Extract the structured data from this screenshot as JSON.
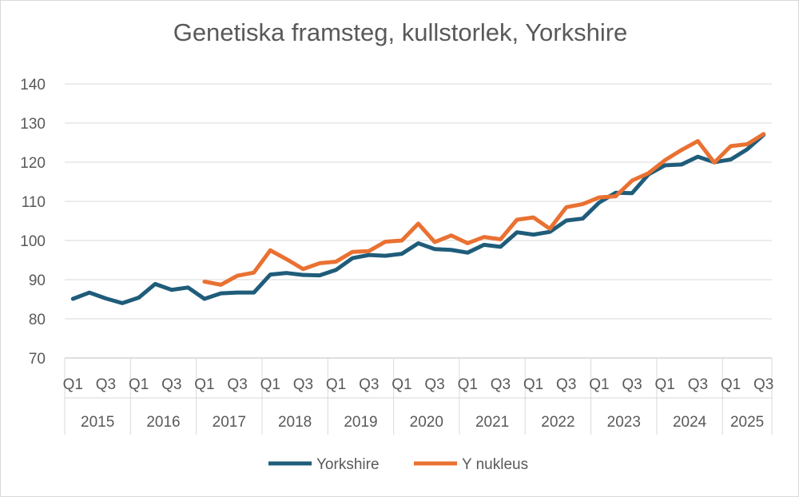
{
  "chart_data": {
    "type": "line",
    "title": "Genetiska framsteg, kullstorlek, Yorkshire",
    "xlabel": "",
    "ylabel": "",
    "ylim": [
      70,
      140
    ],
    "yticks": [
      70,
      80,
      90,
      100,
      110,
      120,
      130,
      140
    ],
    "grid": "horizontal",
    "legend": "bottom",
    "years": [
      "2015",
      "2016",
      "2017",
      "2018",
      "2019",
      "2020",
      "2021",
      "2022",
      "2023",
      "2024",
      "2025"
    ],
    "quarter_labels": [
      "Q1",
      "Q3"
    ],
    "x": [
      "2015 Q1",
      "2015 Q2",
      "2015 Q3",
      "2015 Q4",
      "2016 Q1",
      "2016 Q2",
      "2016 Q3",
      "2016 Q4",
      "2017 Q1",
      "2017 Q2",
      "2017 Q3",
      "2017 Q4",
      "2018 Q1",
      "2018 Q2",
      "2018 Q3",
      "2018 Q4",
      "2019 Q1",
      "2019 Q2",
      "2019 Q3",
      "2019 Q4",
      "2020 Q1",
      "2020 Q2",
      "2020 Q3",
      "2020 Q4",
      "2021 Q1",
      "2021 Q2",
      "2021 Q3",
      "2021 Q4",
      "2022 Q1",
      "2022 Q2",
      "2022 Q3",
      "2022 Q4",
      "2023 Q1",
      "2023 Q2",
      "2023 Q3",
      "2023 Q4",
      "2024 Q1",
      "2024 Q2",
      "2024 Q3",
      "2024 Q4",
      "2025 Q1",
      "2025 Q2",
      "2025 Q3"
    ],
    "series": [
      {
        "name": "Yorkshire",
        "color": "#1f5c7a",
        "values": [
          85.1,
          86.7,
          85.2,
          84.0,
          85.4,
          88.9,
          87.4,
          88.0,
          85.1,
          86.5,
          86.7,
          86.7,
          91.3,
          91.7,
          91.2,
          91.1,
          92.5,
          95.5,
          96.3,
          96.1,
          96.6,
          99.3,
          97.8,
          97.6,
          96.9,
          98.9,
          98.4,
          102.1,
          101.5,
          102.2,
          105.1,
          105.6,
          109.7,
          112.2,
          112.1,
          116.9,
          119.2,
          119.4,
          121.4,
          120.0,
          120.7,
          123.3,
          127.0
        ]
      },
      {
        "name": "Y nukleus",
        "color": "#e97132",
        "values": [
          null,
          null,
          null,
          null,
          null,
          null,
          null,
          null,
          89.5,
          88.7,
          91.0,
          91.8,
          97.5,
          95.2,
          92.7,
          94.2,
          94.6,
          97.1,
          97.3,
          99.7,
          100.0,
          104.3,
          99.6,
          101.3,
          99.3,
          100.9,
          100.3,
          105.3,
          105.9,
          103.0,
          108.5,
          109.3,
          111.0,
          111.3,
          115.3,
          117.2,
          120.5,
          123.1,
          125.4,
          119.9,
          124.1,
          124.6,
          127.2
        ]
      }
    ]
  }
}
